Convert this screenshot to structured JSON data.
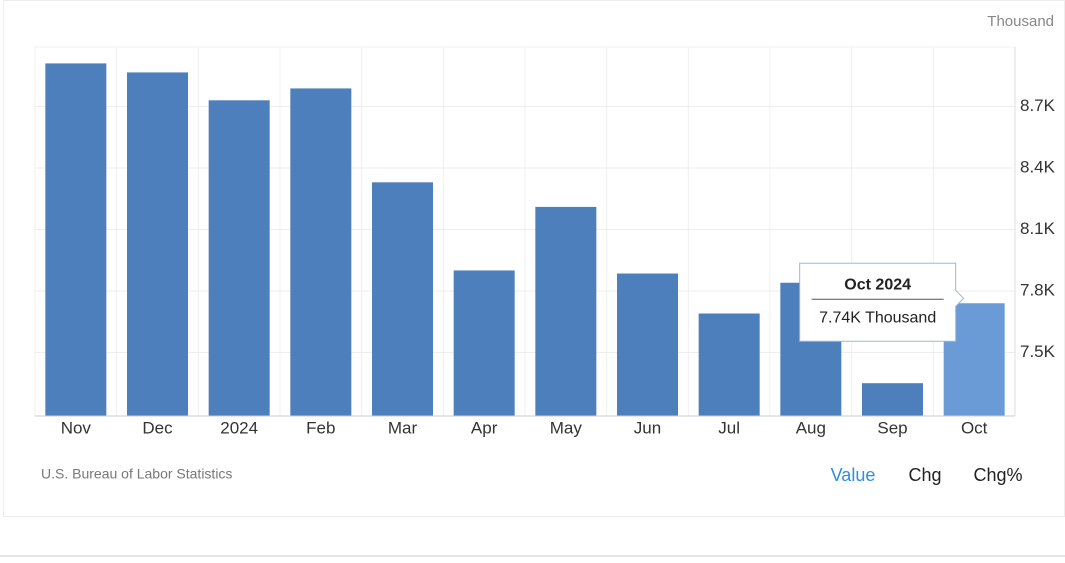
{
  "chart_data": {
    "type": "bar",
    "unit": "Thousand",
    "categories": [
      "Nov",
      "Dec",
      "2024",
      "Feb",
      "Mar",
      "Apr",
      "May",
      "Jun",
      "Jul",
      "Aug",
      "Sep",
      "Oct"
    ],
    "values": [
      8910,
      8866,
      8730,
      8788,
      8330,
      7900,
      8210,
      7885,
      7690,
      7840,
      7350,
      7740
    ],
    "color": "#4d7fbc",
    "highlight_color": "#6a9bd6",
    "ylim": [
      7190,
      8990
    ],
    "yticks": [
      {
        "value": 7500,
        "label": "7.5K"
      },
      {
        "value": 7800,
        "label": "7.8K"
      },
      {
        "value": 8100,
        "label": "8.1K"
      },
      {
        "value": 8400,
        "label": "8.4K"
      },
      {
        "value": 8700,
        "label": "8.7K"
      }
    ],
    "grid": true,
    "tooltip": {
      "title": "Oct 2024",
      "value": 7740,
      "label": "7.74K Thousand"
    },
    "source": "U.S. Bureau of Labor Statistics",
    "buttons": [
      "Value",
      "Chg",
      "Chg%"
    ]
  }
}
